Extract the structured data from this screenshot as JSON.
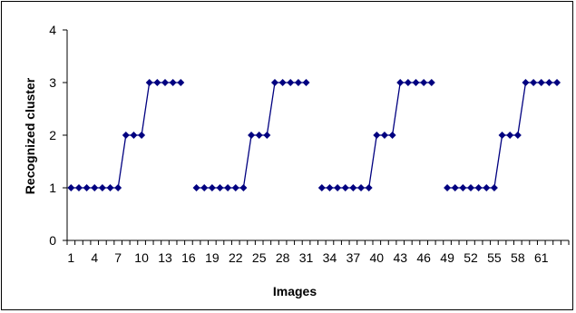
{
  "chart_data": {
    "type": "line",
    "title": "",
    "xlabel": "Images",
    "ylabel": "Recognized cluster",
    "ylim": [
      0,
      4
    ],
    "xlim": [
      1,
      64
    ],
    "y_ticks": [
      "0",
      "1",
      "2",
      "3",
      "4"
    ],
    "x_tick_labels": [
      "1",
      "4",
      "7",
      "10",
      "13",
      "16",
      "19",
      "22",
      "25",
      "28",
      "31",
      "34",
      "37",
      "40",
      "43",
      "46",
      "49",
      "52",
      "55",
      "58",
      "61"
    ],
    "grid": false,
    "legend": "none",
    "series_color": "#000080",
    "series": [
      {
        "segments": [
          {
            "x": [
              1,
              2,
              3,
              4,
              5,
              6,
              7,
              8,
              9,
              10,
              11,
              12,
              13,
              14,
              15
            ],
            "y": [
              1,
              1,
              1,
              1,
              1,
              1,
              1,
              2,
              2,
              2,
              3,
              3,
              3,
              3,
              3
            ]
          },
          {
            "x": [
              17,
              18,
              19,
              20,
              21,
              22,
              23,
              24,
              25,
              26,
              27,
              28,
              29,
              30,
              31
            ],
            "y": [
              1,
              1,
              1,
              1,
              1,
              1,
              1,
              2,
              2,
              2,
              3,
              3,
              3,
              3,
              3
            ]
          },
          {
            "x": [
              33,
              34,
              35,
              36,
              37,
              38,
              39,
              40,
              41,
              42,
              43,
              44,
              45,
              46,
              47
            ],
            "y": [
              1,
              1,
              1,
              1,
              1,
              1,
              1,
              2,
              2,
              2,
              3,
              3,
              3,
              3,
              3
            ]
          },
          {
            "x": [
              49,
              50,
              51,
              52,
              53,
              54,
              55,
              56,
              57,
              58,
              59,
              60,
              61,
              62,
              63
            ],
            "y": [
              1,
              1,
              1,
              1,
              1,
              1,
              1,
              2,
              2,
              2,
              3,
              3,
              3,
              3,
              3
            ]
          }
        ]
      }
    ]
  }
}
